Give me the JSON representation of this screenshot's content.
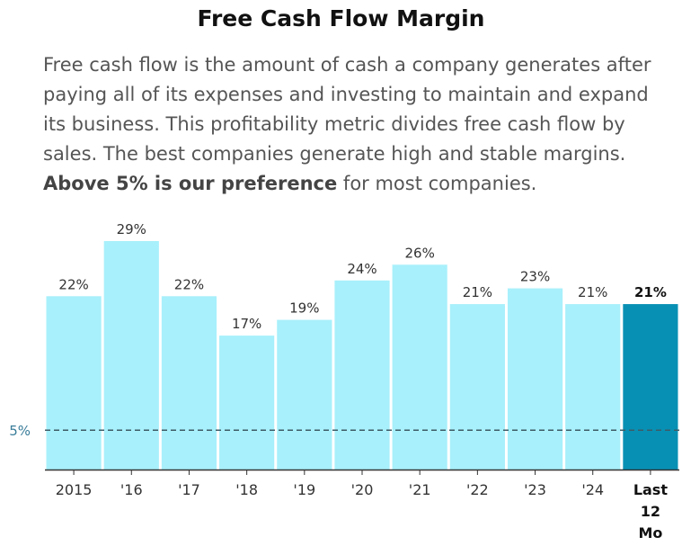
{
  "title": "Free Cash Flow Margin",
  "description": {
    "intro": "Free cash flow is the amount of cash a company generates after paying all of its expenses and investing to maintain and expand its business. This profitability metric divides free cash flow by sales. The best companies generate high and stable margins.",
    "emphasis": "Above 5% is our preference",
    "outro": "for most companies."
  },
  "chart_data": {
    "type": "bar",
    "title": "Free Cash Flow Margin",
    "categories": [
      "2015",
      "'16",
      "'17",
      "'18",
      "'19",
      "'20",
      "'21",
      "'22",
      "'23",
      "'24",
      "Last 12 Mo"
    ],
    "category_lines": [
      [
        "2015"
      ],
      [
        "'16"
      ],
      [
        "'17"
      ],
      [
        "'18"
      ],
      [
        "'19"
      ],
      [
        "'20"
      ],
      [
        "'21"
      ],
      [
        "'22"
      ],
      [
        "'23"
      ],
      [
        "'24"
      ],
      [
        "Last",
        "12",
        "Mo"
      ]
    ],
    "values": [
      22,
      29,
      22,
      17,
      19,
      24,
      26,
      21,
      23,
      21,
      21
    ],
    "data_labels": [
      "22%",
      "29%",
      "22%",
      "17%",
      "19%",
      "24%",
      "26%",
      "21%",
      "23%",
      "21%",
      "21%"
    ],
    "highlight_index": 10,
    "ylim": [
      0,
      29
    ],
    "reference_line": {
      "value": 5,
      "label": "5%"
    },
    "colors": {
      "bar": "#a8f0fb",
      "highlight": "#0890b4",
      "reference": "#3d5b66",
      "axis": "#333333"
    },
    "xlabel": "",
    "ylabel": ""
  }
}
